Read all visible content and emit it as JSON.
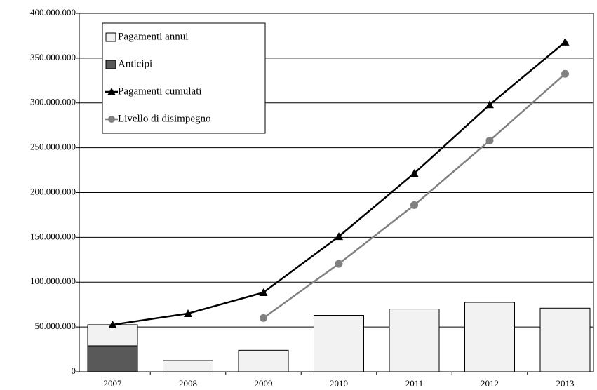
{
  "chart_data": {
    "type": "bar",
    "categories": [
      "2007",
      "2008",
      "2009",
      "2010",
      "2011",
      "2012",
      "2013"
    ],
    "series": [
      {
        "name": "Anticipi",
        "type": "bar",
        "color": "#595959",
        "values": [
          29,
          null,
          null,
          null,
          null,
          null,
          null
        ]
      },
      {
        "name": "Pagamenti annui",
        "type": "bar",
        "color": "#f2f2f2",
        "values": [
          23.5,
          12.5,
          24,
          63,
          70,
          77.5,
          71
        ]
      },
      {
        "name": "Pagamenti cumulati",
        "type": "line",
        "marker": "triangle",
        "color": "#000000",
        "values": [
          52.5,
          65,
          88.5,
          151,
          221.5,
          298,
          368
        ]
      },
      {
        "name": "Livello di disimpegno",
        "type": "line",
        "marker": "circle",
        "color": "#808080",
        "values": [
          null,
          null,
          60,
          120.5,
          186,
          258,
          332.5
        ]
      }
    ],
    "legend_order": [
      1,
      0,
      2,
      3
    ],
    "ylim": [
      0,
      400
    ],
    "yticks": [
      {
        "value": 0,
        "label": "0"
      },
      {
        "value": 50,
        "label": "50.000.000"
      },
      {
        "value": 100,
        "label": "100.000.000"
      },
      {
        "value": 150,
        "label": "150.000.000"
      },
      {
        "value": 200,
        "label": "200.000.000"
      },
      {
        "value": 250,
        "label": "250.000.000"
      },
      {
        "value": 300,
        "label": "300.000.000"
      },
      {
        "value": 350,
        "label": "350.000.000"
      },
      {
        "value": 400,
        "label": "400.000.000"
      }
    ],
    "grid": true,
    "legend": "upper left"
  }
}
